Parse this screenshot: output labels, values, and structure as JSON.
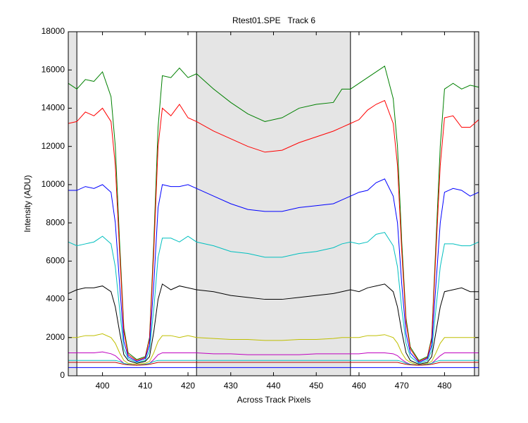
{
  "chart_data": {
    "type": "line",
    "title": "Rtest01.SPE   Track 6",
    "xlabel": "Across Track Pixels",
    "ylabel": "Intensity (ADU)",
    "xlim": [
      392,
      488
    ],
    "xticks": [
      400,
      410,
      420,
      430,
      440,
      450,
      460,
      470,
      480
    ],
    "ylim": [
      0,
      18000
    ],
    "yticks": [
      0,
      2000,
      4000,
      6000,
      8000,
      10000,
      12000,
      14000,
      16000,
      18000
    ],
    "shaded_regions": [
      [
        392,
        394
      ],
      [
        422,
        458
      ],
      [
        487,
        488
      ]
    ],
    "shade_color": "#e5e5e5",
    "x": [
      392,
      394,
      396,
      398,
      400,
      402,
      403,
      404,
      405,
      406,
      408,
      410,
      411,
      412,
      413,
      414,
      416,
      418,
      420,
      422,
      426,
      430,
      434,
      438,
      442,
      446,
      450,
      454,
      456,
      458,
      460,
      462,
      464,
      466,
      468,
      469,
      470,
      471,
      472,
      474,
      476,
      477,
      478,
      479,
      480,
      482,
      484,
      486,
      488
    ],
    "series": [
      {
        "color": "#008000",
        "values": [
          15300,
          15000,
          15500,
          15400,
          15900,
          14600,
          12000,
          7000,
          2500,
          1200,
          850,
          1000,
          2000,
          7000,
          13000,
          15700,
          15600,
          16100,
          15600,
          15800,
          15000,
          14300,
          13700,
          13300,
          13500,
          14000,
          14200,
          14300,
          15000,
          15000,
          15300,
          15600,
          15900,
          16200,
          14500,
          12000,
          7000,
          3000,
          1500,
          800,
          1000,
          2000,
          7000,
          12000,
          15000,
          15300,
          15000,
          15200,
          15100
        ]
      },
      {
        "color": "#ff0000",
        "values": [
          13200,
          13300,
          13800,
          13600,
          14000,
          13300,
          11000,
          6500,
          2300,
          1100,
          800,
          950,
          1900,
          6500,
          12000,
          14000,
          13600,
          14200,
          13500,
          13300,
          12800,
          12400,
          12000,
          11700,
          11800,
          12200,
          12500,
          12800,
          13000,
          13200,
          13400,
          13900,
          14200,
          14400,
          13200,
          11000,
          6500,
          2800,
          1400,
          750,
          950,
          1900,
          6500,
          11000,
          13500,
          13600,
          13000,
          13000,
          13400
        ]
      },
      {
        "color": "#0000ff",
        "values": [
          9700,
          9700,
          9900,
          9800,
          10000,
          9600,
          8000,
          4800,
          1800,
          1000,
          750,
          900,
          1600,
          4800,
          8800,
          10000,
          9900,
          9900,
          10000,
          9800,
          9400,
          9000,
          8700,
          8600,
          8600,
          8800,
          8900,
          9000,
          9200,
          9400,
          9600,
          9700,
          10100,
          10300,
          9400,
          8000,
          4800,
          2200,
          1200,
          700,
          900,
          1600,
          4800,
          8000,
          9600,
          9800,
          9700,
          9400,
          9600
        ]
      },
      {
        "color": "#00bfbf",
        "values": [
          7000,
          6800,
          6900,
          7000,
          7300,
          6900,
          5700,
          3500,
          1400,
          900,
          700,
          800,
          1300,
          3500,
          6200,
          7200,
          7200,
          7000,
          7300,
          7000,
          6800,
          6500,
          6400,
          6200,
          6200,
          6400,
          6500,
          6700,
          6900,
          7000,
          6900,
          7000,
          7400,
          7500,
          6800,
          5700,
          3500,
          1700,
          1000,
          650,
          800,
          1300,
          3500,
          5700,
          6900,
          6900,
          6800,
          6800,
          7000
        ]
      },
      {
        "color": "#000000",
        "values": [
          4300,
          4500,
          4600,
          4600,
          4700,
          4400,
          3600,
          2300,
          1100,
          800,
          650,
          750,
          1000,
          2300,
          4000,
          4800,
          4500,
          4700,
          4600,
          4500,
          4400,
          4200,
          4100,
          4000,
          4000,
          4100,
          4200,
          4300,
          4400,
          4500,
          4400,
          4600,
          4700,
          4800,
          4400,
          3600,
          2300,
          1200,
          800,
          600,
          700,
          1000,
          2300,
          3600,
          4400,
          4500,
          4600,
          4400,
          4400
        ]
      },
      {
        "color": "#bfbf00",
        "values": [
          2000,
          2000,
          2100,
          2100,
          2200,
          2000,
          1700,
          1200,
          800,
          650,
          600,
          650,
          750,
          1200,
          1800,
          2100,
          2100,
          2000,
          2100,
          2000,
          1950,
          1900,
          1900,
          1850,
          1850,
          1900,
          1900,
          1950,
          2000,
          2000,
          2000,
          2100,
          2100,
          2150,
          2000,
          1700,
          1200,
          850,
          700,
          550,
          650,
          750,
          1200,
          1700,
          2000,
          2000,
          2000,
          2000,
          2000
        ]
      },
      {
        "color": "#bf00bf",
        "values": [
          1200,
          1200,
          1200,
          1200,
          1250,
          1150,
          1050,
          850,
          650,
          600,
          550,
          600,
          650,
          850,
          1100,
          1200,
          1200,
          1200,
          1200,
          1200,
          1150,
          1150,
          1100,
          1100,
          1100,
          1100,
          1150,
          1150,
          1150,
          1150,
          1150,
          1200,
          1200,
          1200,
          1150,
          1050,
          850,
          700,
          600,
          550,
          600,
          650,
          850,
          1050,
          1200,
          1200,
          1200,
          1200,
          1200
        ]
      },
      {
        "color": "#00bfbf",
        "values": [
          800,
          800,
          800,
          800,
          800,
          800,
          800,
          750,
          650,
          600,
          550,
          600,
          650,
          750,
          800,
          800,
          800,
          800,
          800,
          800,
          800,
          800,
          800,
          800,
          800,
          800,
          800,
          800,
          800,
          800,
          800,
          800,
          800,
          800,
          800,
          800,
          750,
          650,
          600,
          550,
          600,
          650,
          750,
          800,
          800,
          800,
          800,
          800,
          800
        ]
      },
      {
        "color": "#bf0000",
        "values": [
          700,
          700,
          700,
          700,
          700,
          700,
          700,
          650,
          600,
          570,
          550,
          570,
          600,
          650,
          700,
          700,
          700,
          700,
          700,
          700,
          700,
          700,
          700,
          700,
          700,
          700,
          700,
          700,
          700,
          700,
          700,
          700,
          700,
          700,
          700,
          700,
          650,
          600,
          570,
          550,
          570,
          600,
          650,
          700,
          700,
          700,
          700,
          700,
          700
        ]
      },
      {
        "color": "#0000ff",
        "values": [
          430,
          430,
          430,
          430,
          430,
          430,
          430,
          430,
          430,
          430,
          430,
          430,
          430,
          430,
          430,
          430,
          430,
          430,
          430,
          430,
          430,
          430,
          430,
          430,
          430,
          430,
          430,
          430,
          430,
          430,
          430,
          430,
          430,
          430,
          430,
          430,
          430,
          430,
          430,
          430,
          430,
          430,
          430,
          430,
          430,
          430,
          430,
          430,
          430
        ]
      }
    ]
  }
}
